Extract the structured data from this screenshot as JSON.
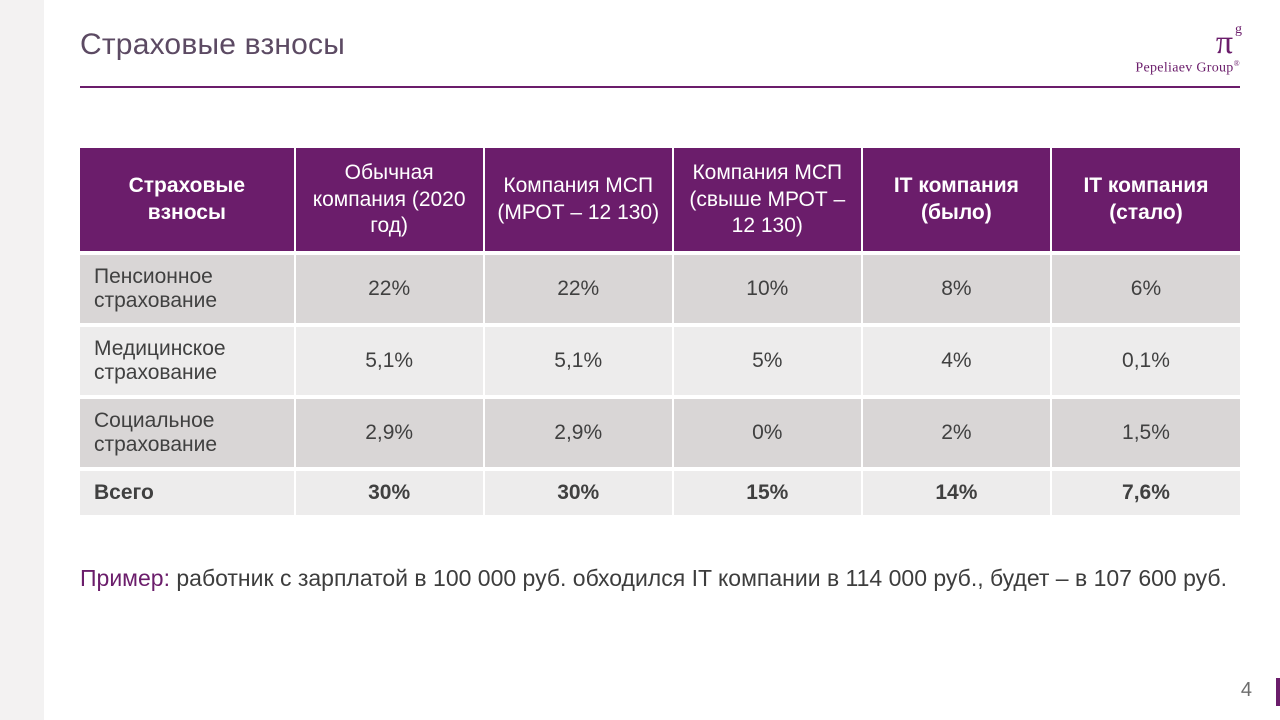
{
  "colors": {
    "accent": "#6b1d6b",
    "title": "#5c4a63",
    "hr": "#6b1d6b",
    "header_bg": "#6b1d6b",
    "header_fg": "#ffffff",
    "row_odd_bg": "#d9d6d6",
    "row_even_bg": "#edecec",
    "text": "#404040",
    "example_label": "#6b1d6b"
  },
  "logo": {
    "pi": "π",
    "sup": "g",
    "text": "Pepeliaev Group",
    "reg": "®"
  },
  "page": {
    "title": "Страховые взносы",
    "number": "4"
  },
  "table": {
    "type": "table",
    "columns": [
      "Страховые взносы",
      "Обычная компания (2020 год)",
      "Компания МСП (МРОТ – 12 130)",
      "Компания МСП (свыше МРОТ – 12 130)",
      "IT компания (было)",
      "IT компания (стало)"
    ],
    "rows": [
      {
        "label": "Пенсионное страхование",
        "cells": [
          "22%",
          "22%",
          "10%",
          "8%",
          "6%"
        ],
        "bold": false
      },
      {
        "label": "Медицинское страхование",
        "cells": [
          "5,1%",
          "5,1%",
          "5%",
          "4%",
          "0,1%"
        ],
        "bold": false
      },
      {
        "label": "Социальное страхование",
        "cells": [
          "2,9%",
          "2,9%",
          "0%",
          "2%",
          "1,5%"
        ],
        "bold": false
      },
      {
        "label": "Всего",
        "cells": [
          "30%",
          "30%",
          "15%",
          "14%",
          "7,6%"
        ],
        "bold": true
      }
    ],
    "header_fontsize": 21,
    "cell_fontsize": 21,
    "col_widths_pct": [
      18.5,
      16.3,
      16.3,
      16.3,
      16.3,
      16.3
    ]
  },
  "example": {
    "label": "Пример:",
    "text": " работник с зарплатой в 100 000 руб. обходился IT компании в 114 000 руб., будет – в 107 600 руб."
  }
}
